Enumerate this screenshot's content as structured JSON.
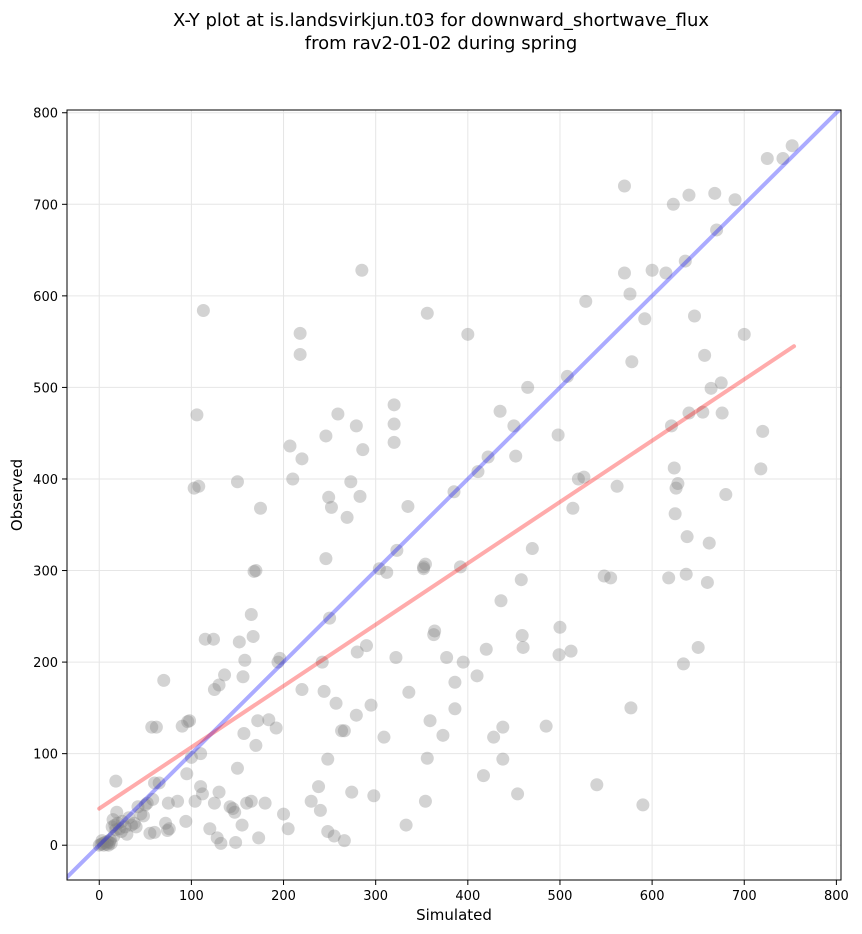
{
  "chart_data": {
    "type": "scatter",
    "title": [
      "X-Y plot at is.landsvirkjun.t03 for downward_shortwave_flux",
      "from rav2-01-02 during spring"
    ],
    "xlabel": "Simulated",
    "ylabel": "Observed",
    "xlim": [
      -35,
      805
    ],
    "ylim": [
      -38,
      803
    ],
    "xticks": [
      0,
      100,
      200,
      300,
      400,
      500,
      600,
      700,
      800
    ],
    "yticks": [
      0,
      100,
      200,
      300,
      400,
      500,
      600,
      700,
      800
    ],
    "grid": true,
    "point_color": "#808080",
    "lines": [
      {
        "kind": "one-to-one",
        "color": "#0000ff",
        "x": [
          -35,
          805
        ],
        "y": [
          -35,
          805
        ]
      },
      {
        "kind": "regression",
        "color": "#ff0000",
        "x": [
          0,
          754
        ],
        "y": [
          40,
          545
        ]
      }
    ],
    "points": [
      [
        0,
        0
      ],
      [
        2,
        1
      ],
      [
        3,
        5
      ],
      [
        4,
        2
      ],
      [
        5,
        0
      ],
      [
        6,
        3
      ],
      [
        8,
        1
      ],
      [
        9,
        4
      ],
      [
        10,
        0
      ],
      [
        11,
        3
      ],
      [
        12,
        6
      ],
      [
        13,
        2
      ],
      [
        14,
        20
      ],
      [
        15,
        28
      ],
      [
        16,
        10
      ],
      [
        17,
        22
      ],
      [
        18,
        17
      ],
      [
        19,
        36
      ],
      [
        18,
        70
      ],
      [
        20,
        24
      ],
      [
        22,
        18
      ],
      [
        24,
        15
      ],
      [
        25,
        26
      ],
      [
        28,
        20
      ],
      [
        30,
        12
      ],
      [
        32,
        30
      ],
      [
        35,
        22
      ],
      [
        38,
        24
      ],
      [
        40,
        20
      ],
      [
        42,
        42
      ],
      [
        45,
        34
      ],
      [
        48,
        32
      ],
      [
        50,
        44
      ],
      [
        52,
        46
      ],
      [
        55,
        13
      ],
      [
        57,
        129
      ],
      [
        58,
        50
      ],
      [
        60,
        14
      ],
      [
        60,
        68
      ],
      [
        62,
        129
      ],
      [
        65,
        68
      ],
      [
        70,
        180
      ],
      [
        72,
        24
      ],
      [
        74,
        16
      ],
      [
        75,
        46
      ],
      [
        76,
        18
      ],
      [
        85,
        48
      ],
      [
        90,
        130
      ],
      [
        94,
        26
      ],
      [
        95,
        78
      ],
      [
        96,
        135
      ],
      [
        98,
        136
      ],
      [
        100,
        96
      ],
      [
        103,
        390
      ],
      [
        104,
        48
      ],
      [
        106,
        470
      ],
      [
        108,
        392
      ],
      [
        110,
        100
      ],
      [
        110,
        64
      ],
      [
        112,
        56
      ],
      [
        113,
        584
      ],
      [
        115,
        225
      ],
      [
        120,
        18
      ],
      [
        124,
        225
      ],
      [
        125,
        46
      ],
      [
        125,
        170
      ],
      [
        128,
        8
      ],
      [
        130,
        175
      ],
      [
        130,
        58
      ],
      [
        132,
        2
      ],
      [
        136,
        186
      ],
      [
        142,
        42
      ],
      [
        145,
        40
      ],
      [
        147,
        36
      ],
      [
        148,
        3
      ],
      [
        150,
        397
      ],
      [
        150,
        84
      ],
      [
        152,
        222
      ],
      [
        155,
        22
      ],
      [
        156,
        184
      ],
      [
        157,
        122
      ],
      [
        158,
        202
      ],
      [
        160,
        46
      ],
      [
        165,
        48
      ],
      [
        165,
        252
      ],
      [
        167,
        228
      ],
      [
        168,
        299
      ],
      [
        170,
        109
      ],
      [
        170,
        300
      ],
      [
        172,
        136
      ],
      [
        173,
        8
      ],
      [
        175,
        368
      ],
      [
        180,
        46
      ],
      [
        184,
        137
      ],
      [
        192,
        128
      ],
      [
        194,
        200
      ],
      [
        196,
        204
      ],
      [
        200,
        34
      ],
      [
        205,
        18
      ],
      [
        207,
        436
      ],
      [
        210,
        400
      ],
      [
        218,
        536
      ],
      [
        218,
        559
      ],
      [
        220,
        422
      ],
      [
        220,
        170
      ],
      [
        230,
        48
      ],
      [
        238,
        64
      ],
      [
        240,
        38
      ],
      [
        242,
        200
      ],
      [
        244,
        168
      ],
      [
        246,
        447
      ],
      [
        246,
        313
      ],
      [
        248,
        15
      ],
      [
        248,
        94
      ],
      [
        249,
        380
      ],
      [
        250,
        248
      ],
      [
        252,
        369
      ],
      [
        255,
        10
      ],
      [
        257,
        155
      ],
      [
        259,
        471
      ],
      [
        263,
        125
      ],
      [
        266,
        125
      ],
      [
        266,
        5
      ],
      [
        269,
        358
      ],
      [
        273,
        397
      ],
      [
        274,
        58
      ],
      [
        279,
        458
      ],
      [
        279,
        142
      ],
      [
        280,
        211
      ],
      [
        283,
        381
      ],
      [
        285,
        628
      ],
      [
        286,
        432
      ],
      [
        290,
        218
      ],
      [
        295,
        153
      ],
      [
        298,
        54
      ],
      [
        304,
        302
      ],
      [
        309,
        118
      ],
      [
        312,
        298
      ],
      [
        320,
        481
      ],
      [
        320,
        440
      ],
      [
        320,
        460
      ],
      [
        322,
        205
      ],
      [
        323,
        322
      ],
      [
        333,
        22
      ],
      [
        335,
        370
      ],
      [
        336,
        167
      ],
      [
        352,
        304
      ],
      [
        352,
        302
      ],
      [
        354,
        307
      ],
      [
        354,
        48
      ],
      [
        356,
        581
      ],
      [
        356,
        95
      ],
      [
        359,
        136
      ],
      [
        363,
        230
      ],
      [
        364,
        234
      ],
      [
        373,
        120
      ],
      [
        377,
        205
      ],
      [
        385,
        386
      ],
      [
        386,
        178
      ],
      [
        386,
        149
      ],
      [
        392,
        304
      ],
      [
        395,
        200
      ],
      [
        400,
        558
      ],
      [
        410,
        185
      ],
      [
        411,
        408
      ],
      [
        417,
        76
      ],
      [
        420,
        214
      ],
      [
        422,
        424
      ],
      [
        428,
        118
      ],
      [
        435,
        474
      ],
      [
        436,
        267
      ],
      [
        438,
        129
      ],
      [
        438,
        94
      ],
      [
        450,
        458
      ],
      [
        452,
        425
      ],
      [
        454,
        56
      ],
      [
        458,
        290
      ],
      [
        459,
        229
      ],
      [
        460,
        216
      ],
      [
        465,
        500
      ],
      [
        470,
        324
      ],
      [
        485,
        130
      ],
      [
        498,
        448
      ],
      [
        499,
        208
      ],
      [
        500,
        238
      ],
      [
        508,
        512
      ],
      [
        512,
        212
      ],
      [
        514,
        368
      ],
      [
        520,
        400
      ],
      [
        526,
        402
      ],
      [
        528,
        594
      ],
      [
        540,
        66
      ],
      [
        548,
        294
      ],
      [
        555,
        292
      ],
      [
        562,
        392
      ],
      [
        570,
        720
      ],
      [
        570,
        625
      ],
      [
        576,
        602
      ],
      [
        577,
        150
      ],
      [
        578,
        528
      ],
      [
        590,
        44
      ],
      [
        592,
        575
      ],
      [
        600,
        628
      ],
      [
        615,
        625
      ],
      [
        618,
        292
      ],
      [
        621,
        458
      ],
      [
        623,
        700
      ],
      [
        624,
        412
      ],
      [
        625,
        362
      ],
      [
        626,
        390
      ],
      [
        628,
        395
      ],
      [
        634,
        198
      ],
      [
        636,
        638
      ],
      [
        637,
        296
      ],
      [
        638,
        337
      ],
      [
        640,
        710
      ],
      [
        640,
        472
      ],
      [
        646,
        578
      ],
      [
        650,
        216
      ],
      [
        655,
        473
      ],
      [
        657,
        535
      ],
      [
        660,
        287
      ],
      [
        662,
        330
      ],
      [
        664,
        499
      ],
      [
        668,
        712
      ],
      [
        670,
        672
      ],
      [
        675,
        505
      ],
      [
        676,
        472
      ],
      [
        680,
        383
      ],
      [
        690,
        705
      ],
      [
        700,
        558
      ],
      [
        718,
        411
      ],
      [
        720,
        452
      ],
      [
        725,
        750
      ],
      [
        742,
        750
      ],
      [
        752,
        764
      ]
    ]
  }
}
